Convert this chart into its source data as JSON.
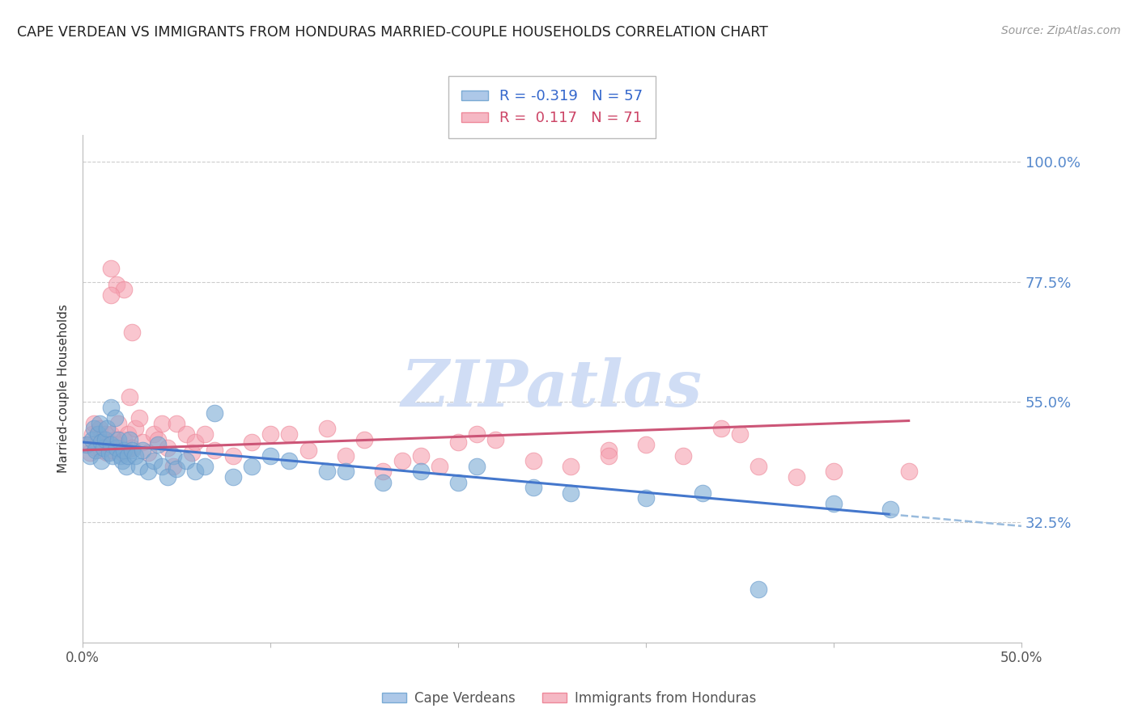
{
  "title": "CAPE VERDEAN VS IMMIGRANTS FROM HONDURAS MARRIED-COUPLE HOUSEHOLDS CORRELATION CHART",
  "source": "Source: ZipAtlas.com",
  "xlabel": "",
  "ylabel": "Married-couple Households",
  "xlim": [
    0.0,
    0.5
  ],
  "ylim": [
    0.1,
    1.05
  ],
  "yticks": [
    0.325,
    0.55,
    0.775,
    1.0
  ],
  "yticklabels": [
    "32.5%",
    "55.0%",
    "77.5%",
    "100.0%"
  ],
  "background_color": "#ffffff",
  "grid_color": "#cccccc",
  "watermark": "ZIPatlas",
  "watermark_color": "#d0ddf5",
  "series1_label": "Cape Verdeans",
  "series1_color": "#7aaad4",
  "series1_edge": "#6699cc",
  "series1_line": "#4477cc",
  "series1_dash": "#99bbdd",
  "series1_R": -0.319,
  "series1_N": 57,
  "series2_label": "Immigrants from Honduras",
  "series2_color": "#f5a0b0",
  "series2_edge": "#ee8899",
  "series2_line": "#cc5577",
  "series2_R": 0.117,
  "series2_N": 71,
  "cape_verdean_x": [
    0.002,
    0.004,
    0.005,
    0.006,
    0.007,
    0.008,
    0.009,
    0.01,
    0.01,
    0.011,
    0.012,
    0.013,
    0.014,
    0.015,
    0.015,
    0.016,
    0.017,
    0.018,
    0.019,
    0.02,
    0.021,
    0.022,
    0.023,
    0.024,
    0.025,
    0.026,
    0.028,
    0.03,
    0.032,
    0.035,
    0.038,
    0.04,
    0.042,
    0.045,
    0.048,
    0.05,
    0.055,
    0.06,
    0.065,
    0.07,
    0.08,
    0.09,
    0.1,
    0.11,
    0.13,
    0.14,
    0.16,
    0.18,
    0.2,
    0.21,
    0.24,
    0.26,
    0.3,
    0.33,
    0.36,
    0.4,
    0.43
  ],
  "cape_verdean_y": [
    0.47,
    0.45,
    0.48,
    0.5,
    0.46,
    0.49,
    0.51,
    0.475,
    0.44,
    0.465,
    0.48,
    0.5,
    0.455,
    0.47,
    0.54,
    0.45,
    0.52,
    0.465,
    0.48,
    0.45,
    0.44,
    0.46,
    0.43,
    0.45,
    0.48,
    0.46,
    0.45,
    0.43,
    0.46,
    0.42,
    0.44,
    0.47,
    0.43,
    0.41,
    0.45,
    0.425,
    0.44,
    0.42,
    0.43,
    0.53,
    0.41,
    0.43,
    0.45,
    0.44,
    0.42,
    0.42,
    0.4,
    0.42,
    0.4,
    0.43,
    0.39,
    0.38,
    0.37,
    0.38,
    0.2,
    0.36,
    0.35
  ],
  "honduras_x": [
    0.002,
    0.004,
    0.005,
    0.006,
    0.007,
    0.008,
    0.009,
    0.01,
    0.011,
    0.012,
    0.013,
    0.014,
    0.015,
    0.015,
    0.016,
    0.017,
    0.018,
    0.019,
    0.02,
    0.021,
    0.022,
    0.023,
    0.024,
    0.025,
    0.026,
    0.028,
    0.03,
    0.032,
    0.035,
    0.038,
    0.04,
    0.042,
    0.045,
    0.048,
    0.05,
    0.055,
    0.058,
    0.06,
    0.065,
    0.07,
    0.08,
    0.09,
    0.1,
    0.11,
    0.12,
    0.13,
    0.14,
    0.15,
    0.16,
    0.17,
    0.18,
    0.19,
    0.2,
    0.21,
    0.22,
    0.24,
    0.26,
    0.28,
    0.3,
    0.32,
    0.34,
    0.36,
    0.38,
    0.4,
    0.018,
    0.022,
    0.026,
    0.28,
    0.35,
    0.44,
    0.015
  ],
  "honduras_y": [
    0.47,
    0.455,
    0.49,
    0.51,
    0.465,
    0.475,
    0.5,
    0.46,
    0.48,
    0.49,
    0.455,
    0.475,
    0.49,
    0.8,
    0.46,
    0.48,
    0.47,
    0.51,
    0.465,
    0.455,
    0.48,
    0.46,
    0.49,
    0.56,
    0.465,
    0.5,
    0.52,
    0.475,
    0.455,
    0.49,
    0.48,
    0.51,
    0.465,
    0.43,
    0.51,
    0.49,
    0.455,
    0.475,
    0.49,
    0.46,
    0.45,
    0.475,
    0.49,
    0.49,
    0.46,
    0.5,
    0.45,
    0.48,
    0.42,
    0.44,
    0.45,
    0.43,
    0.475,
    0.49,
    0.48,
    0.44,
    0.43,
    0.46,
    0.47,
    0.45,
    0.5,
    0.43,
    0.41,
    0.42,
    0.77,
    0.76,
    0.68,
    0.45,
    0.49,
    0.42,
    0.75
  ],
  "cv_line_x0": 0.0,
  "cv_line_y0": 0.475,
  "cv_line_x1": 0.43,
  "cv_line_y1": 0.34,
  "hn_line_x0": 0.0,
  "hn_line_y0": 0.46,
  "hn_line_x1": 0.44,
  "hn_line_y1": 0.515
}
